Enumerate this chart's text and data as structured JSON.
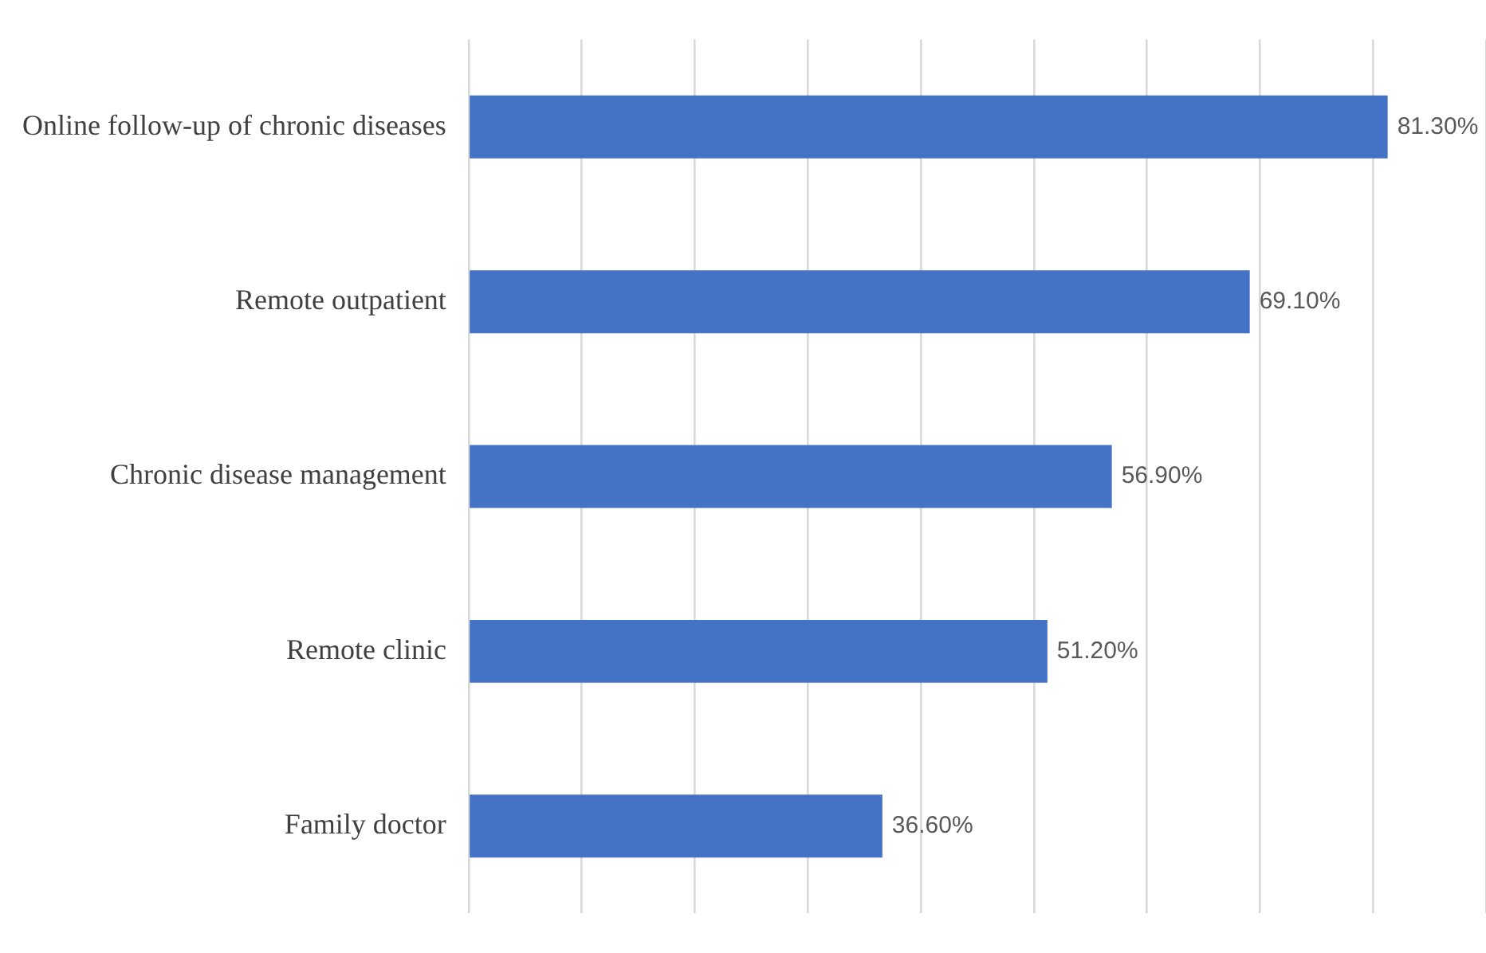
{
  "chart_data": {
    "type": "bar",
    "orientation": "horizontal",
    "categories": [
      "Online follow-up of chronic diseases",
      "Remote outpatient",
      "Chronic disease management",
      "Remote clinic",
      "Family doctor"
    ],
    "values": [
      81.3,
      69.1,
      56.9,
      51.2,
      36.6
    ],
    "value_labels": [
      "81.30%",
      "69.10%",
      "56.90%",
      "51.20%",
      "36.60%"
    ],
    "color": "#4472c4",
    "xlim": [
      0,
      90
    ],
    "xticks": [
      {
        "value": 0,
        "label": null
      },
      {
        "value": 10,
        "label": null
      },
      {
        "value": 20,
        "label": null
      },
      {
        "value": 30,
        "label": null
      },
      {
        "value": 40,
        "label": null
      },
      {
        "value": 50,
        "label": null
      },
      {
        "value": 60,
        "label": null
      },
      {
        "value": 70,
        "label": null
      },
      {
        "value": 80,
        "label": null
      },
      {
        "value": 90,
        "label": null
      }
    ],
    "grid": "x",
    "tick_labels": "y",
    "legend": false
  }
}
